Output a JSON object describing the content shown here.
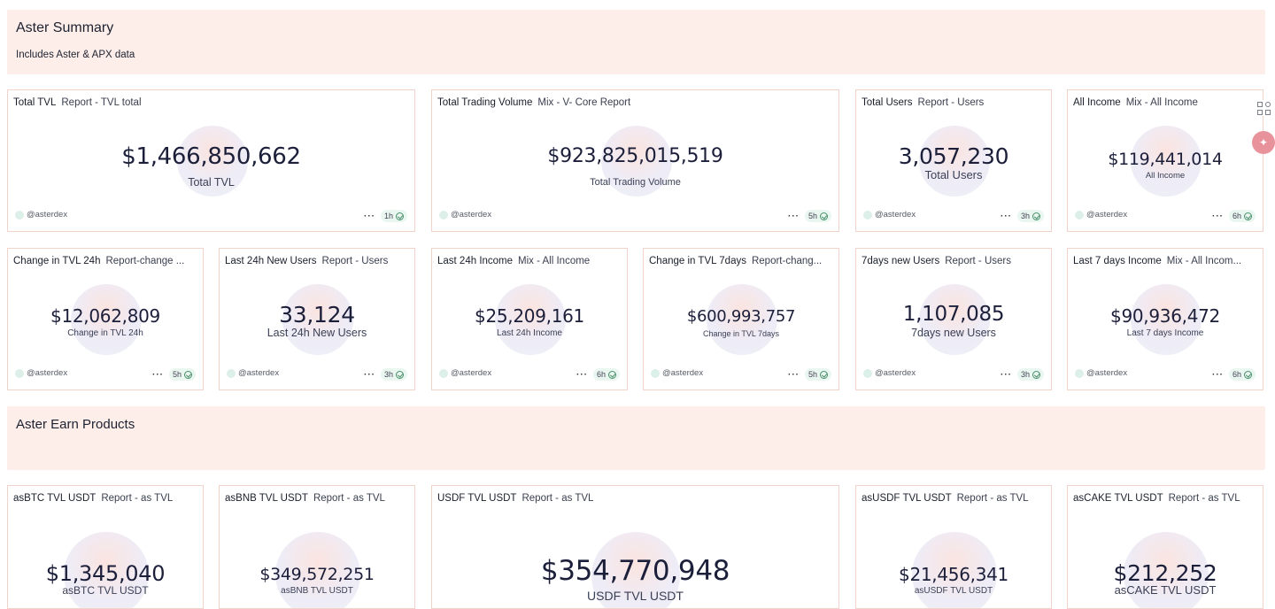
{
  "summary": {
    "title": "Aster Summary",
    "subtitle": "Includes Aster & APX data"
  },
  "earn": {
    "title": "Aster Earn Products"
  },
  "cards": {
    "total_tvl": {
      "title": "Total TVL",
      "source": "Report - TVL total",
      "value": "$1,466,850,662",
      "label": "Total TVL",
      "author": "@asterdex",
      "age": "1h"
    },
    "total_volume": {
      "title": "Total Trading Volume",
      "source": "Mix - V- Core Report",
      "value": "$923,825,015,519",
      "label": "Total Trading Volume",
      "author": "@asterdex",
      "age": "5h"
    },
    "total_users": {
      "title": "Total Users",
      "source": "Report - Users",
      "value": "3,057,230",
      "label": "Total Users",
      "author": "@asterdex",
      "age": "3h"
    },
    "all_income": {
      "title": "All Income",
      "source": "Mix - All Income",
      "value": "$119,441,014",
      "label": "All Income",
      "author": "@asterdex",
      "age": "6h"
    },
    "tvl_24h": {
      "title": "Change in TVL 24h",
      "source": "Report-change ...",
      "value": "$12,062,809",
      "label": "Change in TVL 24h",
      "author": "@asterdex",
      "age": "5h"
    },
    "new_users_24h": {
      "title": "Last 24h New Users",
      "source": "Report - Users",
      "value": "33,124",
      "label": "Last 24h New Users",
      "author": "@asterdex",
      "age": "3h"
    },
    "income_24h": {
      "title": "Last 24h Income",
      "source": "Mix - All Income",
      "value": "$25,209,161",
      "label": "Last 24h Income",
      "author": "@asterdex",
      "age": "6h"
    },
    "tvl_7d": {
      "title": "Change in TVL 7days",
      "source": "Report-chang...",
      "value": "$600,993,757",
      "label": "Change in TVL 7days",
      "author": "@asterdex",
      "age": "5h"
    },
    "new_users_7d": {
      "title": "7days new Users",
      "source": "Report - Users",
      "value": "1,107,085",
      "label": "7days new Users",
      "author": "@asterdex",
      "age": "3h"
    },
    "income_7d": {
      "title": "Last 7 days Income",
      "source": "Mix - All Incom...",
      "value": "$90,936,472",
      "label": "Last 7 days Income",
      "author": "@asterdex",
      "age": "6h"
    },
    "asbtc": {
      "title": "asBTC TVL USDT",
      "source": "Report - as TVL",
      "value": "$1,345,040",
      "label": "asBTC TVL USDT"
    },
    "asbnb": {
      "title": "asBNB TVL USDT",
      "source": "Report - as TVL",
      "value": "$349,572,251",
      "label": "asBNB TVL USDT"
    },
    "usdf": {
      "title": "USDF TVL USDT",
      "source": "Report - as TVL",
      "value": "$354,770,948",
      "label": "USDF TVL USDT"
    },
    "asusdf": {
      "title": "asUSDF TVL USDT",
      "source": "Report - as TVL",
      "value": "$21,456,341",
      "label": "asUSDF TVL USDT"
    },
    "ascake": {
      "title": "asCAKE TVL USDT",
      "source": "Report - as TVL",
      "value": "$212,252",
      "label": "asCAKE TVL USDT"
    }
  },
  "icons": {
    "side_grid": "add-widget-icon",
    "side_button": "assistant-icon"
  }
}
